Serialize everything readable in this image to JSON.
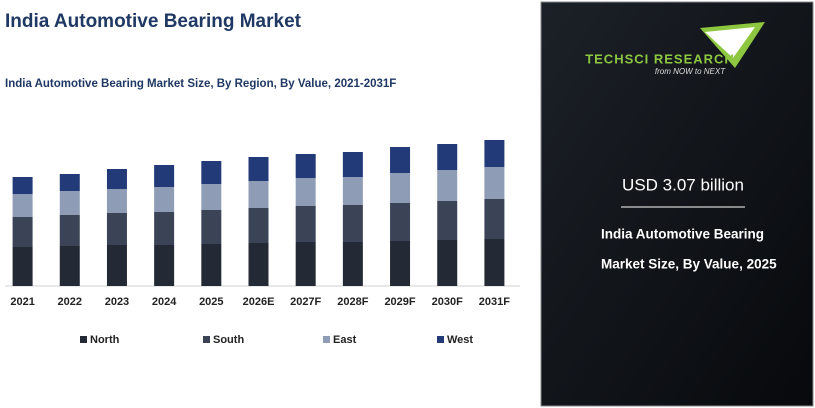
{
  "chart_data": {
    "type": "stacked-bar",
    "title": "India Automotive Bearing Market",
    "subtitle": "India Automotive Bearing Market Size, By Region, By Value, 2021-2031F",
    "categories": [
      "2021",
      "2022",
      "2023",
      "2024",
      "2025",
      "2026E",
      "2027F",
      "2028F",
      "2029F",
      "2030F",
      "2031F"
    ],
    "series": [
      {
        "name": "North",
        "color": "#242a35",
        "values": [
          39,
          40,
          41,
          41,
          42,
          43,
          44,
          44,
          45,
          46,
          47
        ]
      },
      {
        "name": "South",
        "color": "#3b4457",
        "values": [
          30,
          31,
          32,
          33,
          34,
          35,
          36,
          37,
          38,
          39,
          40
        ]
      },
      {
        "name": "East",
        "color": "#8e9cb6",
        "values": [
          23,
          24,
          24,
          25,
          26,
          27,
          28,
          28,
          30,
          31,
          32
        ]
      },
      {
        "name": "West",
        "color": "#223a78",
        "values": [
          17,
          17,
          20,
          22,
          23,
          24,
          24,
          25,
          26,
          26,
          27
        ]
      }
    ],
    "ylim": [
      0,
      180
    ]
  },
  "panel": {
    "brand": "TECHSCI RESEARCH",
    "tagline": "from NOW to NEXT",
    "headline": "USD 3.07 billion",
    "caption_line1": "India Automotive Bearing",
    "caption_line2": "Market Size, By Value, 2025"
  }
}
